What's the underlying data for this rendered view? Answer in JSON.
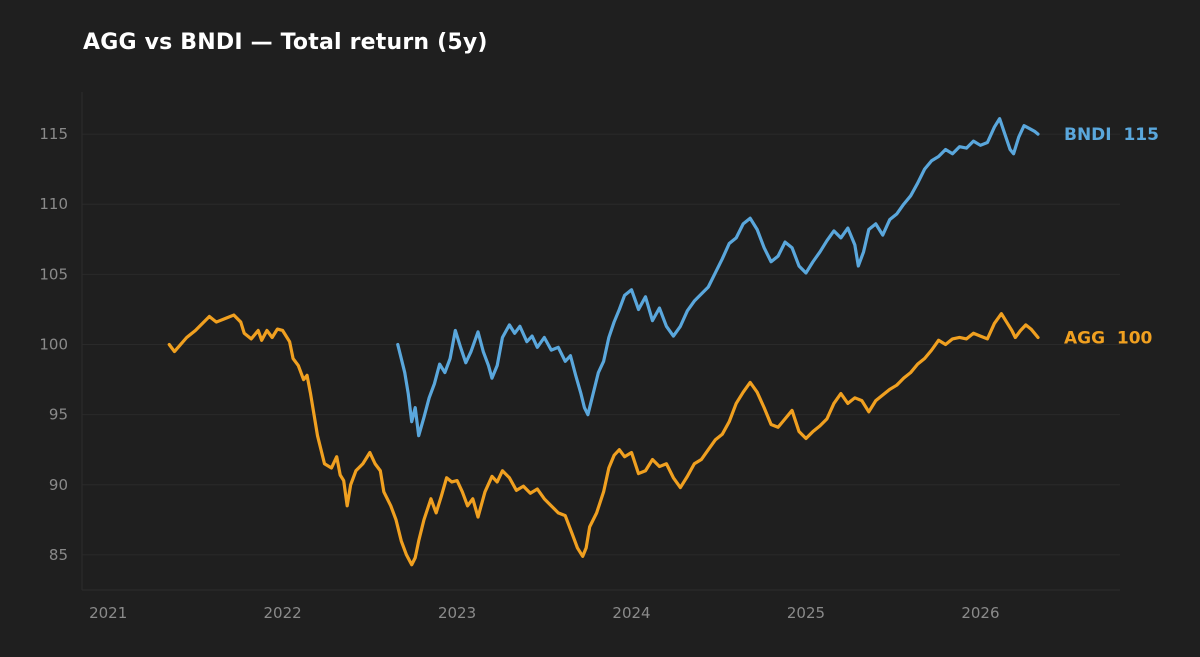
{
  "chart_data": {
    "type": "line",
    "title": "AGG vs BNDI — Total return (5y)",
    "xlabel": "",
    "ylabel": "",
    "x_ticks": [
      "2021",
      "2022",
      "2023",
      "2024",
      "2025",
      "2026"
    ],
    "y_ticks": [
      "85",
      "90",
      "95",
      "100",
      "105",
      "110",
      "115"
    ],
    "xlim": [
      2020.85,
      2026.8
    ],
    "ylim": [
      82.5,
      118
    ],
    "grid": "horizontal",
    "legend": "end-of-line labels",
    "series": [
      {
        "name": "AGG",
        "end_label": "AGG  100",
        "color": "#f0a020",
        "points": [
          [
            2021.35,
            100.0
          ],
          [
            2021.38,
            99.5
          ],
          [
            2021.45,
            100.5
          ],
          [
            2021.5,
            101.0
          ],
          [
            2021.58,
            102.0
          ],
          [
            2021.62,
            101.6
          ],
          [
            2021.68,
            101.9
          ],
          [
            2021.72,
            102.1
          ],
          [
            2021.76,
            101.6
          ],
          [
            2021.78,
            100.8
          ],
          [
            2021.82,
            100.4
          ],
          [
            2021.86,
            101.0
          ],
          [
            2021.88,
            100.3
          ],
          [
            2021.91,
            101.0
          ],
          [
            2021.94,
            100.5
          ],
          [
            2021.97,
            101.1
          ],
          [
            2022.0,
            101.0
          ],
          [
            2022.04,
            100.2
          ],
          [
            2022.06,
            99.0
          ],
          [
            2022.09,
            98.5
          ],
          [
            2022.12,
            97.5
          ],
          [
            2022.14,
            97.8
          ],
          [
            2022.16,
            96.5
          ],
          [
            2022.18,
            95.0
          ],
          [
            2022.2,
            93.5
          ],
          [
            2022.24,
            91.5
          ],
          [
            2022.28,
            91.2
          ],
          [
            2022.31,
            92.0
          ],
          [
            2022.33,
            90.7
          ],
          [
            2022.35,
            90.3
          ],
          [
            2022.37,
            88.5
          ],
          [
            2022.39,
            90.0
          ],
          [
            2022.42,
            91.0
          ],
          [
            2022.46,
            91.5
          ],
          [
            2022.5,
            92.3
          ],
          [
            2022.53,
            91.5
          ],
          [
            2022.56,
            91.0
          ],
          [
            2022.58,
            89.5
          ],
          [
            2022.62,
            88.5
          ],
          [
            2022.65,
            87.5
          ],
          [
            2022.68,
            86.0
          ],
          [
            2022.71,
            85.0
          ],
          [
            2022.74,
            84.3
          ],
          [
            2022.76,
            84.8
          ],
          [
            2022.78,
            86.0
          ],
          [
            2022.81,
            87.5
          ],
          [
            2022.85,
            89.0
          ],
          [
            2022.88,
            88.0
          ],
          [
            2022.91,
            89.2
          ],
          [
            2022.94,
            90.5
          ],
          [
            2022.97,
            90.2
          ],
          [
            2023.0,
            90.3
          ],
          [
            2023.03,
            89.5
          ],
          [
            2023.06,
            88.5
          ],
          [
            2023.09,
            89.0
          ],
          [
            2023.12,
            87.7
          ],
          [
            2023.16,
            89.5
          ],
          [
            2023.2,
            90.6
          ],
          [
            2023.23,
            90.2
          ],
          [
            2023.26,
            91.0
          ],
          [
            2023.3,
            90.5
          ],
          [
            2023.34,
            89.6
          ],
          [
            2023.38,
            89.9
          ],
          [
            2023.42,
            89.4
          ],
          [
            2023.46,
            89.7
          ],
          [
            2023.5,
            89.0
          ],
          [
            2023.54,
            88.5
          ],
          [
            2023.58,
            88.0
          ],
          [
            2023.62,
            87.8
          ],
          [
            2023.66,
            86.5
          ],
          [
            2023.69,
            85.5
          ],
          [
            2023.72,
            84.9
          ],
          [
            2023.74,
            85.5
          ],
          [
            2023.76,
            87.0
          ],
          [
            2023.8,
            88.0
          ],
          [
            2023.84,
            89.5
          ],
          [
            2023.87,
            91.2
          ],
          [
            2023.9,
            92.1
          ],
          [
            2023.93,
            92.5
          ],
          [
            2023.96,
            92.0
          ],
          [
            2024.0,
            92.3
          ],
          [
            2024.04,
            90.8
          ],
          [
            2024.08,
            91.0
          ],
          [
            2024.12,
            91.8
          ],
          [
            2024.16,
            91.3
          ],
          [
            2024.2,
            91.5
          ],
          [
            2024.24,
            90.5
          ],
          [
            2024.28,
            89.8
          ],
          [
            2024.32,
            90.6
          ],
          [
            2024.36,
            91.5
          ],
          [
            2024.4,
            91.8
          ],
          [
            2024.44,
            92.5
          ],
          [
            2024.48,
            93.2
          ],
          [
            2024.52,
            93.6
          ],
          [
            2024.56,
            94.5
          ],
          [
            2024.6,
            95.8
          ],
          [
            2024.64,
            96.6
          ],
          [
            2024.68,
            97.3
          ],
          [
            2024.72,
            96.6
          ],
          [
            2024.76,
            95.5
          ],
          [
            2024.8,
            94.3
          ],
          [
            2024.84,
            94.1
          ],
          [
            2024.88,
            94.7
          ],
          [
            2024.92,
            95.3
          ],
          [
            2024.96,
            93.8
          ],
          [
            2025.0,
            93.3
          ],
          [
            2025.04,
            93.8
          ],
          [
            2025.08,
            94.2
          ],
          [
            2025.12,
            94.7
          ],
          [
            2025.16,
            95.8
          ],
          [
            2025.2,
            96.5
          ],
          [
            2025.24,
            95.8
          ],
          [
            2025.28,
            96.2
          ],
          [
            2025.32,
            96.0
          ],
          [
            2025.36,
            95.2
          ],
          [
            2025.4,
            96.0
          ],
          [
            2025.44,
            96.4
          ],
          [
            2025.48,
            96.8
          ],
          [
            2025.52,
            97.1
          ],
          [
            2025.56,
            97.6
          ],
          [
            2025.6,
            98.0
          ],
          [
            2025.64,
            98.6
          ],
          [
            2025.68,
            99.0
          ],
          [
            2025.72,
            99.6
          ],
          [
            2025.76,
            100.3
          ],
          [
            2025.8,
            100.0
          ],
          [
            2025.84,
            100.4
          ],
          [
            2025.88,
            100.5
          ],
          [
            2025.92,
            100.4
          ],
          [
            2025.96,
            100.8
          ],
          [
            2026.0,
            100.6
          ],
          [
            2026.04,
            100.4
          ],
          [
            2026.08,
            101.5
          ],
          [
            2026.12,
            102.2
          ],
          [
            2026.15,
            101.6
          ],
          [
            2026.18,
            101.0
          ],
          [
            2026.2,
            100.5
          ],
          [
            2026.23,
            101.0
          ],
          [
            2026.26,
            101.4
          ],
          [
            2026.29,
            101.1
          ],
          [
            2026.33,
            100.5
          ]
        ]
      },
      {
        "name": "BNDI",
        "end_label": "BNDI  115",
        "color": "#5aa7dc",
        "points": [
          [
            2022.66,
            100.0
          ],
          [
            2022.68,
            99.0
          ],
          [
            2022.7,
            98.0
          ],
          [
            2022.72,
            96.5
          ],
          [
            2022.74,
            94.5
          ],
          [
            2022.76,
            95.5
          ],
          [
            2022.78,
            93.5
          ],
          [
            2022.81,
            94.8
          ],
          [
            2022.84,
            96.2
          ],
          [
            2022.87,
            97.2
          ],
          [
            2022.9,
            98.6
          ],
          [
            2022.93,
            98.0
          ],
          [
            2022.96,
            99.0
          ],
          [
            2022.99,
            101.0
          ],
          [
            2023.02,
            99.8
          ],
          [
            2023.05,
            98.7
          ],
          [
            2023.08,
            99.5
          ],
          [
            2023.12,
            100.9
          ],
          [
            2023.15,
            99.5
          ],
          [
            2023.18,
            98.5
          ],
          [
            2023.2,
            97.6
          ],
          [
            2023.23,
            98.5
          ],
          [
            2023.26,
            100.5
          ],
          [
            2023.3,
            101.4
          ],
          [
            2023.33,
            100.8
          ],
          [
            2023.36,
            101.3
          ],
          [
            2023.4,
            100.2
          ],
          [
            2023.43,
            100.6
          ],
          [
            2023.46,
            99.8
          ],
          [
            2023.5,
            100.5
          ],
          [
            2023.54,
            99.6
          ],
          [
            2023.58,
            99.8
          ],
          [
            2023.62,
            98.8
          ],
          [
            2023.65,
            99.2
          ],
          [
            2023.68,
            97.8
          ],
          [
            2023.71,
            96.5
          ],
          [
            2023.73,
            95.5
          ],
          [
            2023.75,
            95.0
          ],
          [
            2023.78,
            96.5
          ],
          [
            2023.81,
            98.0
          ],
          [
            2023.84,
            98.8
          ],
          [
            2023.87,
            100.5
          ],
          [
            2023.9,
            101.6
          ],
          [
            2023.93,
            102.5
          ],
          [
            2023.96,
            103.5
          ],
          [
            2024.0,
            103.9
          ],
          [
            2024.04,
            102.5
          ],
          [
            2024.08,
            103.4
          ],
          [
            2024.12,
            101.7
          ],
          [
            2024.16,
            102.6
          ],
          [
            2024.2,
            101.3
          ],
          [
            2024.24,
            100.6
          ],
          [
            2024.28,
            101.3
          ],
          [
            2024.32,
            102.4
          ],
          [
            2024.36,
            103.1
          ],
          [
            2024.4,
            103.6
          ],
          [
            2024.44,
            104.1
          ],
          [
            2024.48,
            105.1
          ],
          [
            2024.52,
            106.1
          ],
          [
            2024.56,
            107.2
          ],
          [
            2024.6,
            107.6
          ],
          [
            2024.64,
            108.6
          ],
          [
            2024.68,
            109.0
          ],
          [
            2024.72,
            108.2
          ],
          [
            2024.76,
            106.9
          ],
          [
            2024.8,
            105.9
          ],
          [
            2024.84,
            106.3
          ],
          [
            2024.88,
            107.3
          ],
          [
            2024.92,
            106.9
          ],
          [
            2024.96,
            105.6
          ],
          [
            2025.0,
            105.1
          ],
          [
            2025.04,
            105.9
          ],
          [
            2025.08,
            106.6
          ],
          [
            2025.12,
            107.4
          ],
          [
            2025.16,
            108.1
          ],
          [
            2025.2,
            107.6
          ],
          [
            2025.24,
            108.3
          ],
          [
            2025.28,
            107.1
          ],
          [
            2025.3,
            105.6
          ],
          [
            2025.33,
            106.6
          ],
          [
            2025.36,
            108.2
          ],
          [
            2025.4,
            108.6
          ],
          [
            2025.44,
            107.8
          ],
          [
            2025.48,
            108.9
          ],
          [
            2025.52,
            109.3
          ],
          [
            2025.56,
            110.0
          ],
          [
            2025.6,
            110.6
          ],
          [
            2025.64,
            111.5
          ],
          [
            2025.68,
            112.5
          ],
          [
            2025.72,
            113.1
          ],
          [
            2025.76,
            113.4
          ],
          [
            2025.8,
            113.9
          ],
          [
            2025.84,
            113.6
          ],
          [
            2025.88,
            114.1
          ],
          [
            2025.92,
            114.0
          ],
          [
            2025.96,
            114.5
          ],
          [
            2026.0,
            114.2
          ],
          [
            2026.04,
            114.4
          ],
          [
            2026.08,
            115.5
          ],
          [
            2026.11,
            116.1
          ],
          [
            2026.14,
            115.0
          ],
          [
            2026.17,
            113.9
          ],
          [
            2026.19,
            113.6
          ],
          [
            2026.22,
            114.8
          ],
          [
            2026.25,
            115.6
          ],
          [
            2026.28,
            115.4
          ],
          [
            2026.31,
            115.2
          ],
          [
            2026.33,
            115.0
          ]
        ]
      }
    ]
  }
}
